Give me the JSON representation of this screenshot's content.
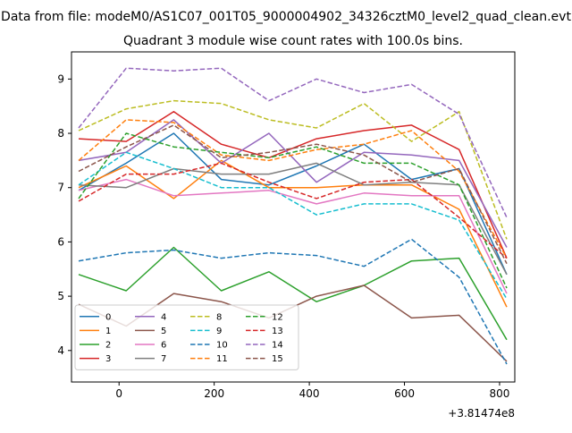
{
  "suptitle": "Data from file: modeM0/AS1C07_001T05_9000004902_34326cztM0_level2_quad_clean.evt",
  "chart_data": {
    "type": "line",
    "title": "Quadrant 3 module wise count rates with 100.0s bins.",
    "xlabel": "",
    "ylabel": "",
    "x_offset_label": "+3.81474e8",
    "x_offset": 381474000,
    "xlim": [
      -100,
      832
    ],
    "ylim": [
      3.42,
      9.5
    ],
    "grid": false,
    "legend_position": "lower-left",
    "legend_columns": 4,
    "x_ticks": [
      0,
      200,
      400,
      600,
      800
    ],
    "x_tick_labels": [
      "0",
      "200",
      "400",
      "600",
      "800"
    ],
    "y_ticks": [
      4,
      5,
      6,
      7,
      8,
      9
    ],
    "y_tick_labels": [
      "4",
      "5",
      "6",
      "7",
      "8",
      "9"
    ],
    "x": [
      -85,
      15,
      115,
      215,
      315,
      415,
      515,
      615,
      715,
      815
    ],
    "series": [
      {
        "name": "0",
        "color": "#1f77b4",
        "dash": "solid",
        "values": [
          6.95,
          7.45,
          8.0,
          7.15,
          7.05,
          7.4,
          7.8,
          7.15,
          7.35,
          5.4
        ]
      },
      {
        "name": "1",
        "color": "#ff7f0e",
        "dash": "solid",
        "values": [
          7.0,
          7.4,
          6.8,
          7.5,
          7.0,
          7.0,
          7.05,
          7.05,
          6.6,
          4.8
        ]
      },
      {
        "name": "2",
        "color": "#2ca02c",
        "dash": "solid",
        "values": [
          5.4,
          5.1,
          5.9,
          5.1,
          5.45,
          4.9,
          5.2,
          5.65,
          5.7,
          4.2
        ]
      },
      {
        "name": "3",
        "color": "#d62728",
        "dash": "solid",
        "values": [
          7.9,
          7.85,
          8.4,
          7.8,
          7.55,
          7.9,
          8.05,
          8.15,
          7.7,
          5.7
        ]
      },
      {
        "name": "4",
        "color": "#9467bd",
        "dash": "solid",
        "values": [
          7.5,
          7.65,
          8.25,
          7.45,
          8.0,
          7.1,
          7.65,
          7.6,
          7.5,
          5.9
        ]
      },
      {
        "name": "5",
        "color": "#8c564b",
        "dash": "solid",
        "values": [
          4.85,
          4.45,
          5.05,
          4.9,
          4.6,
          5.0,
          5.2,
          4.6,
          4.65,
          3.8
        ]
      },
      {
        "name": "6",
        "color": "#e377c2",
        "dash": "solid",
        "values": [
          6.95,
          7.15,
          6.85,
          6.9,
          6.95,
          6.7,
          6.9,
          6.85,
          6.85,
          5.05
        ]
      },
      {
        "name": "7",
        "color": "#7f7f7f",
        "dash": "solid",
        "values": [
          7.05,
          7.0,
          7.35,
          7.25,
          7.25,
          7.45,
          7.05,
          7.1,
          7.05,
          5.4
        ]
      },
      {
        "name": "8",
        "color": "#bcbd22",
        "dash": "dashed",
        "values": [
          8.05,
          8.45,
          8.6,
          8.55,
          8.25,
          8.1,
          8.55,
          7.85,
          8.4,
          6.05
        ]
      },
      {
        "name": "9",
        "color": "#17becf",
        "dash": "dashed",
        "values": [
          7.05,
          7.65,
          7.35,
          7.0,
          7.0,
          6.5,
          6.7,
          6.7,
          6.4,
          4.95
        ]
      },
      {
        "name": "10",
        "color": "#1f77b4",
        "dash": "dashed",
        "values": [
          5.65,
          5.8,
          5.85,
          5.7,
          5.8,
          5.75,
          5.55,
          6.05,
          5.35,
          3.75
        ]
      },
      {
        "name": "11",
        "color": "#ff7f0e",
        "dash": "dashed",
        "values": [
          7.5,
          8.25,
          8.2,
          7.6,
          7.5,
          7.7,
          7.8,
          8.05,
          7.3,
          5.7
        ]
      },
      {
        "name": "12",
        "color": "#2ca02c",
        "dash": "dashed",
        "values": [
          6.8,
          8.0,
          7.75,
          7.65,
          7.55,
          7.75,
          7.45,
          7.45,
          7.05,
          5.15
        ]
      },
      {
        "name": "13",
        "color": "#d62728",
        "dash": "dashed",
        "values": [
          6.75,
          7.25,
          7.25,
          7.45,
          7.1,
          6.8,
          7.1,
          7.15,
          6.45,
          5.7
        ]
      },
      {
        "name": "14",
        "color": "#9467bd",
        "dash": "dashed",
        "values": [
          8.1,
          9.2,
          9.15,
          9.2,
          8.6,
          9.0,
          8.75,
          8.9,
          8.35,
          6.45
        ]
      },
      {
        "name": "15",
        "color": "#8c564b",
        "dash": "dashed",
        "values": [
          7.3,
          7.75,
          8.15,
          7.55,
          7.65,
          7.8,
          7.6,
          7.1,
          7.35,
          5.6
        ]
      }
    ]
  }
}
